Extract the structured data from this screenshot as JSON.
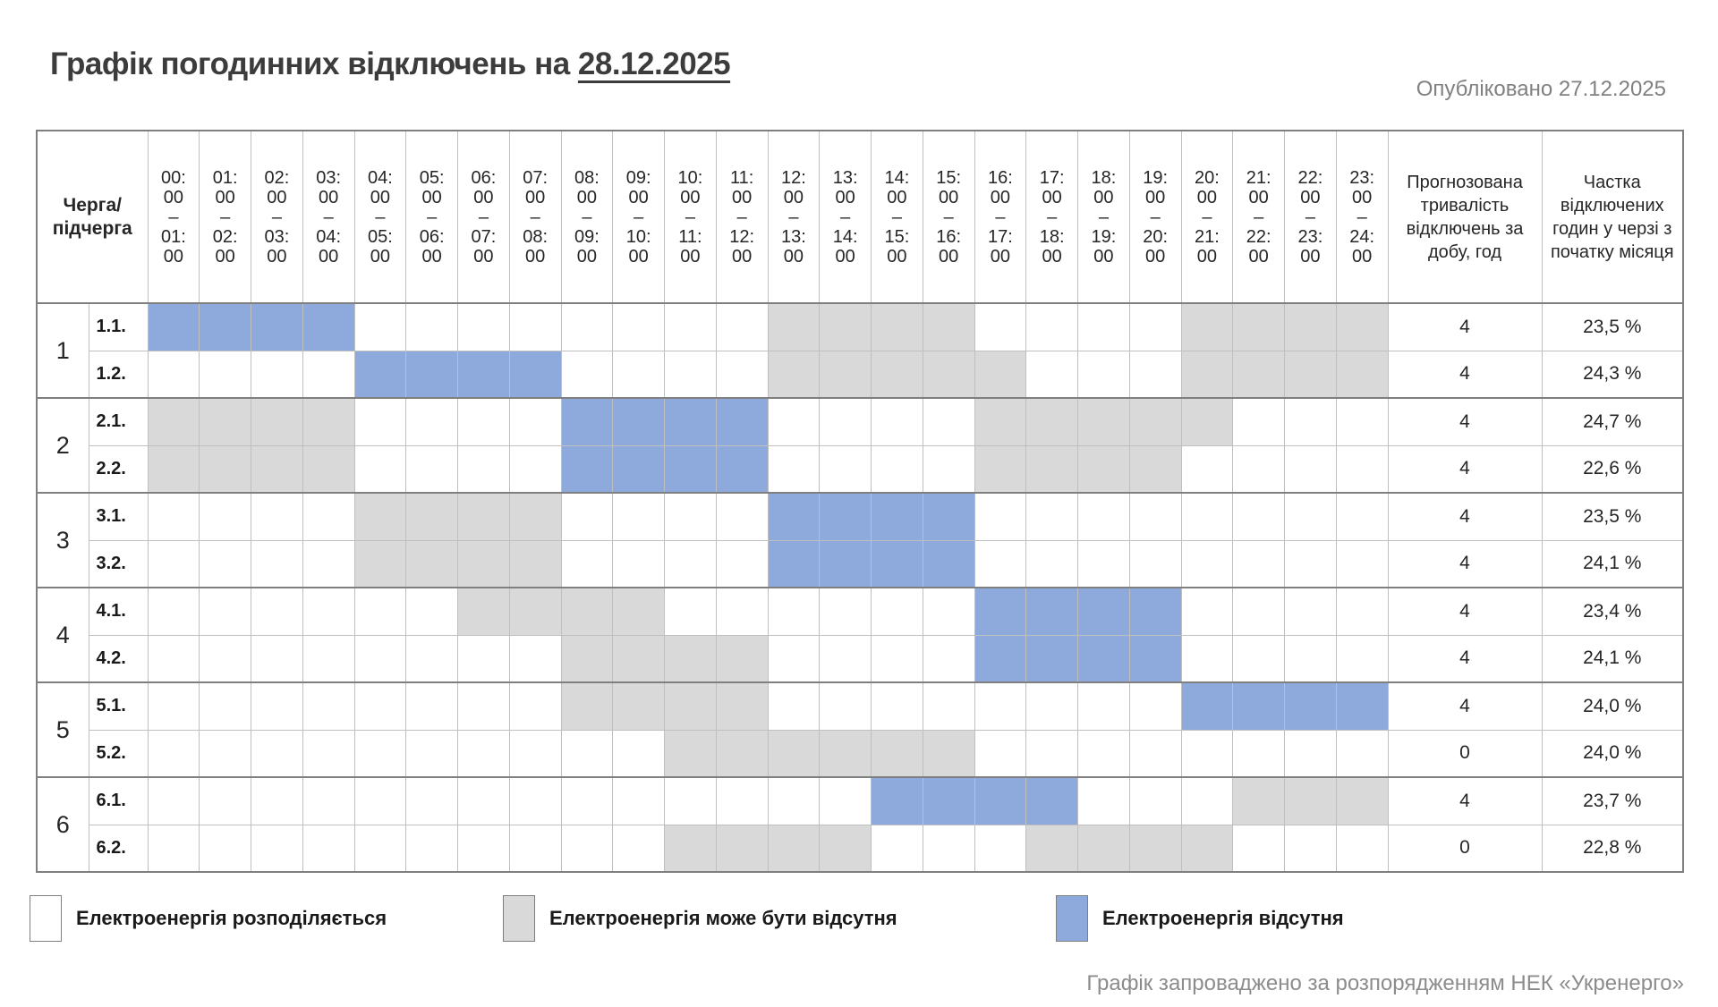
{
  "title": {
    "prefix": "Графік погодинних відключень на",
    "date": "28.12.2025"
  },
  "published": "Опубліковано 27.12.2025",
  "corner": {
    "line1": "Черга/",
    "line2": "підчерга"
  },
  "columns": {
    "duration": "Прогнозована тривалість відключень за добу, год",
    "share": "Частка відключених годин у черзі з початку місяця"
  },
  "chart_data": {
    "type": "heatmap",
    "title": "Графік погодинних відключень на 28.12.2025",
    "categories": [
      "00:00–01:00",
      "01:00–02:00",
      "02:00–03:00",
      "03:00–04:00",
      "04:00–05:00",
      "05:00–06:00",
      "06:00–07:00",
      "07:00–08:00",
      "08:00–09:00",
      "09:00–10:00",
      "10:00–11:00",
      "11:00–12:00",
      "12:00–13:00",
      "13:00–14:00",
      "14:00–15:00",
      "15:00–16:00",
      "16:00–17:00",
      "17:00–18:00",
      "18:00–19:00",
      "19:00–20:00",
      "20:00–21:00",
      "21:00–22:00",
      "22:00–23:00",
      "23:00–24:00"
    ],
    "state_codes": {
      "w": "Електроенергія розподіляється",
      "g": "Електроенергія може бути відсутня",
      "b": "Електроенергія відсутня"
    },
    "rows": [
      {
        "queue": "1",
        "sub": "1.1.",
        "cells": "bbbbwwwwwwwwggggwwwwgggg",
        "duration": "4",
        "share": "23,5 %"
      },
      {
        "queue": "1",
        "sub": "1.2.",
        "cells": "wwwwbbbbwwwwgggggwwwgggg",
        "duration": "4",
        "share": "24,3 %"
      },
      {
        "queue": "2",
        "sub": "2.1.",
        "cells": "ggggwwwwbbbbwwwwgggggwww",
        "duration": "4",
        "share": "24,7 %"
      },
      {
        "queue": "2",
        "sub": "2.2.",
        "cells": "ggggwwwwbbbbwwwwggggwwww",
        "duration": "4",
        "share": "22,6 %"
      },
      {
        "queue": "3",
        "sub": "3.1.",
        "cells": "wwwwggggwwwwbbbbwwwwwwww",
        "duration": "4",
        "share": "23,5 %"
      },
      {
        "queue": "3",
        "sub": "3.2.",
        "cells": "wwwwggggwwwwbbbbwwwwwwww",
        "duration": "4",
        "share": "24,1 %"
      },
      {
        "queue": "4",
        "sub": "4.1.",
        "cells": "wwwwwwggggwwwwwwbbbbwwww",
        "duration": "4",
        "share": "23,4 %"
      },
      {
        "queue": "4",
        "sub": "4.2.",
        "cells": "wwwwwwwwggggwwwwbbbbwwww",
        "duration": "4",
        "share": "24,1 %"
      },
      {
        "queue": "5",
        "sub": "5.1.",
        "cells": "wwwwwwwwggggwwwwwwwwbbbb",
        "duration": "4",
        "share": "24,0 %"
      },
      {
        "queue": "5",
        "sub": "5.2.",
        "cells": "wwwwwwwwwwggggggwwwwwwww",
        "duration": "0",
        "share": "24,0 %"
      },
      {
        "queue": "6",
        "sub": "6.1.",
        "cells": "wwwwwwwwwwwwwwbbbbwwwggg",
        "duration": "4",
        "share": "23,7 %"
      },
      {
        "queue": "6",
        "sub": "6.2.",
        "cells": "wwwwwwwwwwggggwwwggggwww",
        "duration": "0",
        "share": "22,8 %"
      }
    ]
  },
  "legend": [
    {
      "state": "w",
      "label": "Електроенергія розподіляється"
    },
    {
      "state": "g",
      "label": "Електроенергія може бути відсутня"
    },
    {
      "state": "b",
      "label": "Електроенергія відсутня"
    }
  ],
  "colors": {
    "w": "#FFFFFF",
    "g": "#D9D9D9",
    "b": "#8EA9DB"
  },
  "footer": "Графік запроваджено за розпорядженням НЕК «Укренерго»"
}
